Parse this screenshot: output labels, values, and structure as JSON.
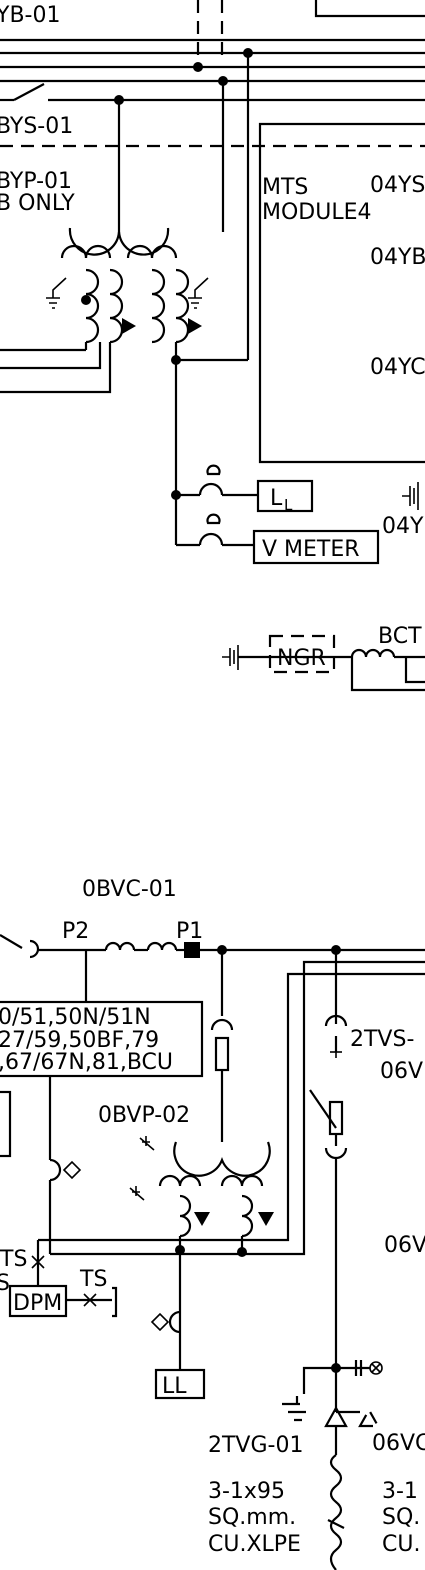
{
  "labels": {
    "yb01": "YB-01",
    "bys01": "BYS-01",
    "byp01": "BYP-01",
    "b_only": "B ONLY",
    "mts": "MTS",
    "module4": "MODULE4",
    "l04ys": "04YS",
    "l04yb": "04YB",
    "l04yc": "04YC",
    "l04y": "04Y",
    "ll_top_main": "L",
    "ll_top_sub": "L",
    "v_meter": "V METER",
    "ngr": "NGR",
    "bct": "BCT",
    "obvc01": "0BVC-01",
    "p2": "P2",
    "p1": "P1",
    "relay_line1": "0/51,50N/51N",
    "relay_line2": "27/59,50BF,79",
    "relay_line3": ",67/67N,81,BCU",
    "obvp02": "0BVP-02",
    "ts_left": "TS",
    "ts_s": "S",
    "ts_right": "TS",
    "dpm": "DPM",
    "ll_bottom": "LL",
    "tvs": "2TVS-",
    "l06v_a": "06V",
    "l06v_b": "06V",
    "l06vc": "06VC",
    "tvg01": "2TVG-01",
    "cable_left_1": "3-1x95",
    "cable_left_2": "SQ.mm.",
    "cable_left_3": "CU.XLPE",
    "cable_right_1": "3-1",
    "cable_right_2": "SQ.",
    "cable_right_3": "CU."
  }
}
